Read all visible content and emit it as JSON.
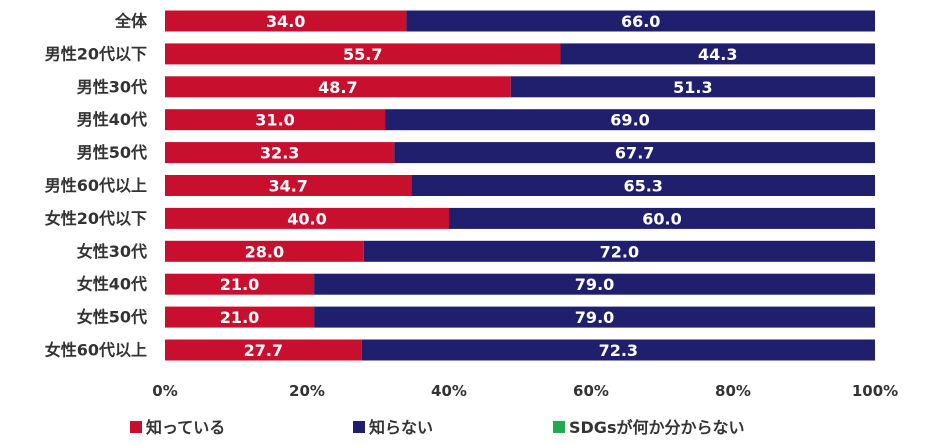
{
  "chart_data": {
    "type": "bar",
    "orientation": "horizontal",
    "stacked": true,
    "categories": [
      "全体",
      "男性20代以下",
      "男性30代",
      "男性40代",
      "男性50代",
      "男性60代以上",
      "女性20代以下",
      "女性30代",
      "女性40代",
      "女性50代",
      "女性60代以上"
    ],
    "series": [
      {
        "name": "知っている",
        "color": "#c8102e",
        "values": [
          34.0,
          55.7,
          48.7,
          31.0,
          32.3,
          34.7,
          40.0,
          28.0,
          21.0,
          21.0,
          27.7
        ],
        "labels": [
          "34.0",
          "55.7",
          "48.7",
          "31.0",
          "32.3",
          "34.7",
          "40.0",
          "28.0",
          "21.0",
          "21.0",
          "27.7"
        ]
      },
      {
        "name": "知らない",
        "color": "#1f1f6e",
        "values": [
          66.0,
          44.3,
          51.3,
          69.0,
          67.7,
          65.3,
          60.0,
          72.0,
          79.0,
          79.0,
          72.3
        ],
        "labels": [
          "66.0",
          "44.3",
          "51.3",
          "69.0",
          "67.7",
          "65.3",
          "60.0",
          "72.0",
          "79.0",
          "79.0",
          "72.3"
        ]
      },
      {
        "name": "SDGsが何か分からない",
        "color": "#22a94f",
        "values": [
          0,
          0,
          0,
          0,
          0,
          0,
          0,
          0,
          0,
          0,
          0
        ],
        "labels": [
          "",
          "",
          "",
          "",
          "",
          "",
          "",
          "",
          "",
          "",
          ""
        ]
      }
    ],
    "xlim": [
      0,
      100
    ],
    "xticks": [
      0,
      20,
      40,
      60,
      80,
      100
    ],
    "xtick_labels": [
      "0%",
      "20%",
      "40%",
      "60%",
      "80%",
      "100%"
    ],
    "legend_position": "bottom",
    "title": "",
    "xlabel": "",
    "ylabel": ""
  }
}
